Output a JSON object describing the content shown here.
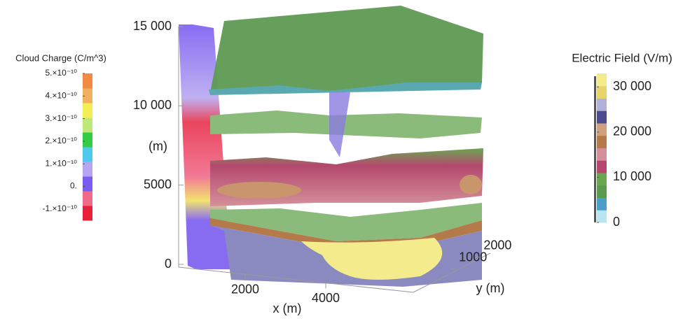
{
  "chart_data": {
    "type": "volume",
    "zlabel": "(m)",
    "zlim": [
      0,
      15000
    ],
    "zticks": [
      0,
      5000,
      {
        "value": 10000,
        "label": "10 000"
      },
      {
        "value": 15000,
        "label": "15 000"
      }
    ],
    "xlabel": "x (m)",
    "xlim": [
      0,
      6000
    ],
    "xticks": [
      2000,
      4000
    ],
    "ylabel": "y (m)",
    "ylim": [
      0,
      2500
    ],
    "yticks": [
      1000,
      2000
    ],
    "colorbars": [
      {
        "title": "Cloud Charge (C/m^3)",
        "clim": [
          -1.5e-10,
          5e-10
        ],
        "ticks": [
          {
            "value": 5e-10,
            "label": "5.×10⁻¹⁰"
          },
          {
            "value": 4e-10,
            "label": "4.×10⁻¹⁰"
          },
          {
            "value": 3e-10,
            "label": "3.×10⁻¹⁰"
          },
          {
            "value": 2e-10,
            "label": "2.×10⁻¹⁰"
          },
          {
            "value": 1e-10,
            "label": "1.×10⁻¹⁰"
          },
          {
            "value": 0,
            "label": "0."
          },
          {
            "value": -1e-10,
            "label": "-1.×10⁻¹⁰"
          }
        ],
        "colors": [
          "#e8203a",
          "#f06a8a",
          "#7a5cf0",
          "#b6a6f2",
          "#4fc8ee",
          "#33cc44",
          "#bfe87a",
          "#f4ee55",
          "#f0b060",
          "#f28a45"
        ]
      },
      {
        "title": "Electric Field (V/m)",
        "clim": [
          0,
          33000
        ],
        "ticks": [
          0,
          {
            "value": 10000,
            "label": "10 000"
          },
          {
            "value": 20000,
            "label": "20 000"
          },
          {
            "value": 30000,
            "label": "30 000"
          }
        ],
        "colors": [
          "#b8e4f4",
          "#4a9ec8",
          "#5a9a4c",
          "#6aa650",
          "#b4486e",
          "#d4909a",
          "#b47a4a",
          "#cfa07c",
          "#4a4a8c",
          "#b0b0d8",
          "#e8d46a",
          "#f4ec8c"
        ]
      }
    ]
  }
}
